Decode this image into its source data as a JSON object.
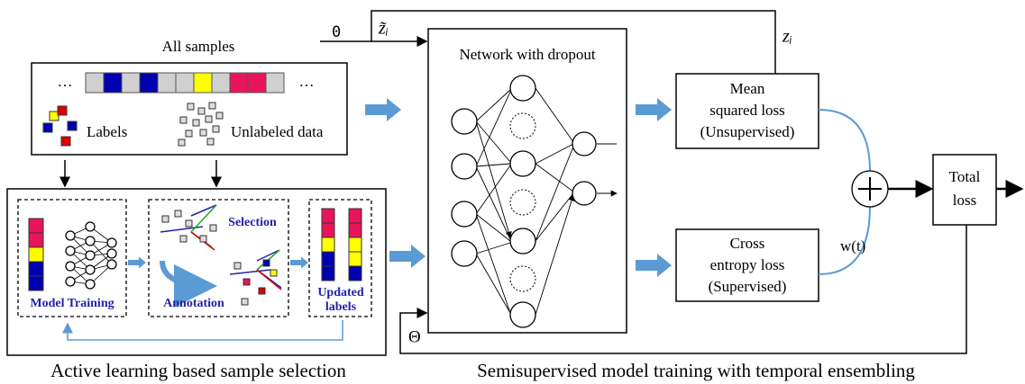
{
  "feedback": {
    "zero": "0",
    "z_tilde": "z̃ᵢ",
    "z": "zᵢ",
    "theta": "Θ",
    "weight": "w(t)"
  },
  "samples": {
    "title": "All samples",
    "ellipsis_left": "…",
    "ellipsis_right": "…",
    "labels": "Labels",
    "unlabeled": "Unlabeled data"
  },
  "active_learning": {
    "model_training": "Model Training",
    "selection": "Selection",
    "annotation": "Annotation",
    "updated_labels": [
      "Updated",
      "labels"
    ],
    "caption": "Active learning based sample selection"
  },
  "network": {
    "title": "Network with dropout"
  },
  "losses": {
    "mean": [
      "Mean",
      "squared loss",
      "(Unsupervised)"
    ],
    "cross": [
      "Cross",
      "entropy loss",
      "(Supervised)"
    ],
    "total": [
      "Total",
      "loss"
    ]
  },
  "caption": "Semisupervised model training with temporal ensembling"
}
